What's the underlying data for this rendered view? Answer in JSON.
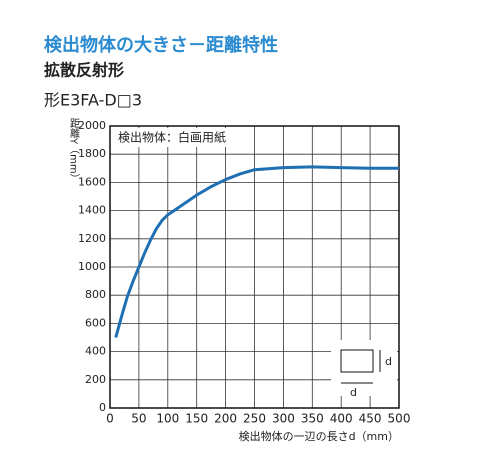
{
  "chart_data": {
    "type": "line",
    "title": "検出物体の大きさ－距離特性",
    "subtitle": "拡散反射形",
    "model": "形E3FA-D□3",
    "y_label": "距離Y（mm）",
    "x_label": "検出物体の一辺の長さd（mm）",
    "annotation": "検出物体：白画用紙",
    "inset_labels": [
      "d",
      "d"
    ],
    "x": [
      10,
      20,
      30,
      40,
      50,
      60,
      70,
      80,
      90,
      100,
      125,
      150,
      175,
      200,
      225,
      250,
      300,
      350,
      400,
      450,
      500
    ],
    "series": [
      {
        "color": "#1f6fb3",
        "values": [
          500,
          650,
          790,
          900,
          1000,
          1100,
          1190,
          1270,
          1330,
          1370,
          1440,
          1510,
          1570,
          1620,
          1660,
          1690,
          1705,
          1710,
          1705,
          1700,
          1700
        ]
      }
    ],
    "xlim": [
      0,
      500
    ],
    "xticks": [
      0,
      50,
      100,
      150,
      200,
      250,
      300,
      350,
      400,
      450,
      500
    ],
    "ylim": [
      0,
      2000
    ],
    "yticks": [
      0,
      200,
      400,
      600,
      800,
      1000,
      1200,
      1400,
      1600,
      1800,
      2000
    ],
    "grid": true
  }
}
